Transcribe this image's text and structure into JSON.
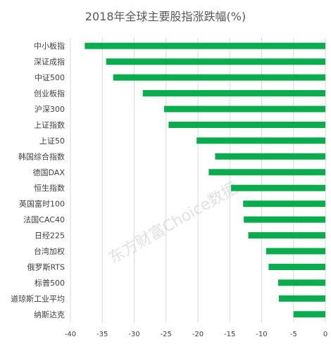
{
  "chart_data": {
    "type": "bar",
    "orientation": "horizontal",
    "title": "2018年全球主要股指涨跌幅(%)",
    "xlabel": "",
    "ylabel": "",
    "categories": [
      "中小板指",
      "深证成指",
      "中证500",
      "创业板指",
      "沪深300",
      "上证指数",
      "上证50",
      "韩国综合指数",
      "德国DAX",
      "恒生指数",
      "英国富时100",
      "法国CAC40",
      "日经225",
      "台湾加权",
      "俄罗斯RTS",
      "标普500",
      "道琼斯工业平均",
      "纳斯达克"
    ],
    "series": [
      {
        "values": [
          -37.75,
          -34.4,
          -33.3,
          -28.65,
          -25.3,
          -24.6,
          -20.2,
          -17.3,
          -18.3,
          -14.8,
          -12.9,
          -12.8,
          -12.1,
          -9.3,
          -8.9,
          -7.4,
          -7.3,
          -5.0
        ]
      }
    ],
    "xlim": [
      -40,
      0
    ],
    "xticks": [
      -40,
      -35,
      -30,
      -25,
      -20,
      -15,
      -10,
      -5,
      0
    ],
    "grid": "vertical",
    "legend": "none",
    "bar_color": "#0aad4e",
    "grid_color": "#d9d9d9"
  },
  "watermark": "东方财富Choice数据"
}
